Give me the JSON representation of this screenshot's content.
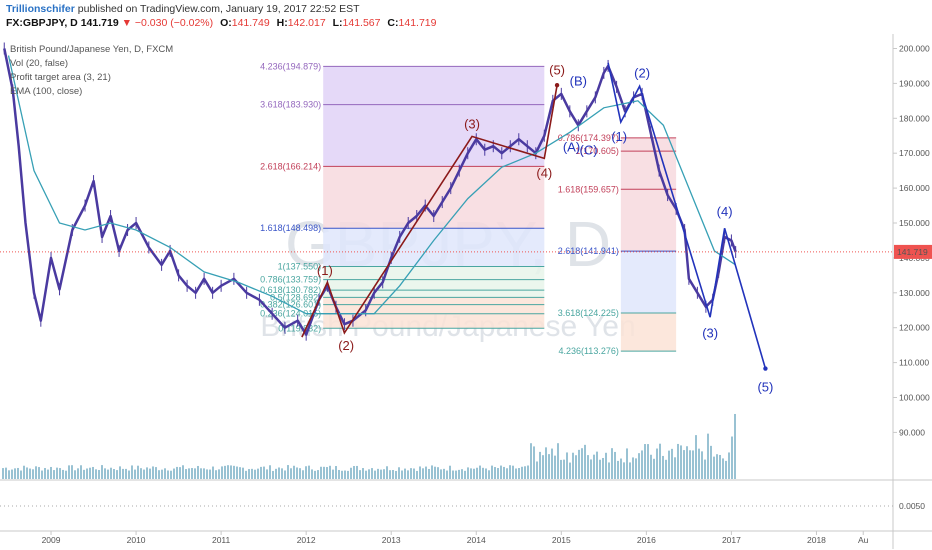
{
  "header": {
    "author": "Trillionschifer",
    "published": "published on TradingView.com, January 19, 2017 22:52 EST",
    "symbol": "FX:GBPJPY, D",
    "last": "141.719",
    "change": "▼ −0.030 (−0.02%)",
    "o_label": "O:",
    "o_value": "141.749",
    "h_label": "H:",
    "h_value": "142.017",
    "l_label": "L:",
    "l_value": "141.567",
    "c_label": "C:",
    "c_value": "141.719"
  },
  "legend": {
    "line1": "British Pound/Japanese Yen, D, FXCM",
    "line2": "Vol (20, false)",
    "line3": "Profit target area (3, 21)",
    "line4": "EMA (100, close)"
  },
  "watermark": {
    "big": "GBPJPY, D",
    "small": "British Pound/Japanese Yen"
  },
  "colors": {
    "wave_red": "#8b1a1a",
    "wave_blue": "#2233bb",
    "price_line": "#ef5350",
    "price_tag_bg": "#ef5350",
    "candles": "#4a3aa0",
    "ema": "#37a0b5",
    "volume": "#7fb3c8"
  },
  "chart_data": {
    "type": "line",
    "title": "British Pound/Japanese Yen, D, FXCM",
    "xlabel": "",
    "ylabel": "",
    "y_ticks": [
      "200.000",
      "190.000",
      "180.000",
      "170.000",
      "160.000",
      "150.000",
      "140.000",
      "130.000",
      "120.000",
      "110.000",
      "100.000",
      "90.000"
    ],
    "indicator_tick": "0.0050",
    "last_price_tag": "141.719",
    "x_ticks": [
      "2009",
      "2010",
      "2011",
      "2012",
      "2013",
      "2014",
      "2015",
      "2016",
      "2017",
      "2018",
      "Au"
    ],
    "ylim": [
      78,
      204
    ],
    "xlim": [
      2008.4,
      2018.9
    ],
    "last_price": 141.719,
    "series": [
      {
        "name": "",
        "values": [
          [
            2008.45,
            200
          ],
          [
            2008.55,
            188
          ],
          [
            2008.62,
            172
          ],
          [
            2008.7,
            150
          ],
          [
            2008.8,
            130
          ],
          [
            2008.88,
            122
          ],
          [
            2009.0,
            140
          ],
          [
            2009.1,
            131
          ],
          [
            2009.25,
            148
          ],
          [
            2009.4,
            155
          ],
          [
            2009.5,
            162
          ],
          [
            2009.6,
            146
          ],
          [
            2009.7,
            152
          ],
          [
            2009.8,
            142
          ],
          [
            2009.9,
            148
          ],
          [
            2010.0,
            150
          ],
          [
            2010.15,
            143
          ],
          [
            2010.3,
            138
          ],
          [
            2010.4,
            142
          ],
          [
            2010.5,
            135
          ],
          [
            2010.6,
            132
          ],
          [
            2010.7,
            130
          ],
          [
            2010.8,
            134
          ],
          [
            2010.9,
            130
          ],
          [
            2011.0,
            132
          ],
          [
            2011.15,
            134
          ],
          [
            2011.3,
            130
          ],
          [
            2011.45,
            128
          ],
          [
            2011.6,
            124
          ],
          [
            2011.75,
            120
          ],
          [
            2011.9,
            122
          ],
          [
            2012.0,
            118
          ],
          [
            2012.15,
            128
          ],
          [
            2012.25,
            132
          ],
          [
            2012.35,
            126
          ],
          [
            2012.45,
            121
          ],
          [
            2012.55,
            122
          ],
          [
            2012.7,
            125
          ],
          [
            2012.8,
            130
          ],
          [
            2012.9,
            133
          ],
          [
            2013.0,
            140
          ],
          [
            2013.1,
            146
          ],
          [
            2013.2,
            150
          ],
          [
            2013.3,
            152
          ],
          [
            2013.4,
            155
          ],
          [
            2013.5,
            152
          ],
          [
            2013.6,
            156
          ],
          [
            2013.7,
            160
          ],
          [
            2013.8,
            165
          ],
          [
            2013.9,
            170
          ],
          [
            2014.0,
            174
          ],
          [
            2014.1,
            171
          ],
          [
            2014.2,
            172
          ],
          [
            2014.3,
            170
          ],
          [
            2014.4,
            172
          ],
          [
            2014.5,
            174
          ],
          [
            2014.6,
            172
          ],
          [
            2014.7,
            170
          ],
          [
            2014.8,
            175
          ],
          [
            2014.9,
            185
          ],
          [
            2015.0,
            187
          ],
          [
            2015.1,
            182
          ],
          [
            2015.2,
            178
          ],
          [
            2015.3,
            182
          ],
          [
            2015.4,
            186
          ],
          [
            2015.5,
            193
          ],
          [
            2015.55,
            195
          ],
          [
            2015.65,
            189
          ],
          [
            2015.75,
            182
          ],
          [
            2015.85,
            186
          ],
          [
            2015.95,
            187
          ],
          [
            2016.05,
            176
          ],
          [
            2016.15,
            165
          ],
          [
            2016.25,
            158
          ],
          [
            2016.35,
            154
          ],
          [
            2016.45,
            148
          ],
          [
            2016.5,
            134
          ],
          [
            2016.6,
            130
          ],
          [
            2016.7,
            126
          ],
          [
            2016.78,
            128
          ],
          [
            2016.85,
            136
          ],
          [
            2016.92,
            146
          ],
          [
            2017.0,
            145
          ],
          [
            2017.05,
            141.7
          ]
        ]
      },
      {
        "name": "",
        "values": [
          [
            2008.5,
            198
          ],
          [
            2008.8,
            165
          ],
          [
            2009.1,
            150
          ],
          [
            2009.4,
            148
          ],
          [
            2009.7,
            150
          ],
          [
            2010.0,
            148
          ],
          [
            2010.4,
            143
          ],
          [
            2010.8,
            136
          ],
          [
            2011.2,
            133
          ],
          [
            2011.6,
            129
          ],
          [
            2012.0,
            124
          ],
          [
            2012.4,
            124
          ],
          [
            2012.8,
            124
          ],
          [
            2013.1,
            132
          ],
          [
            2013.5,
            145
          ],
          [
            2013.9,
            157
          ],
          [
            2014.3,
            166
          ],
          [
            2014.7,
            170
          ],
          [
            2015.1,
            176
          ],
          [
            2015.5,
            183
          ],
          [
            2015.9,
            185
          ],
          [
            2016.2,
            178
          ],
          [
            2016.5,
            160
          ],
          [
            2016.8,
            142
          ],
          [
            2017.05,
            138
          ]
        ]
      }
    ],
    "waves": [
      {
        "name": "",
        "points": [
          [
            2011.95,
            117.3
          ],
          [
            2012.25,
            133.0
          ],
          [
            2012.45,
            118.5
          ],
          [
            2013.95,
            174.8
          ],
          [
            2014.8,
            168.5
          ],
          [
            2014.95,
            189.5
          ]
        ]
      },
      {
        "name": "",
        "points": [
          [
            2015.55,
            195.9
          ],
          [
            2015.7,
            178.9
          ],
          [
            2015.92,
            189.2
          ],
          [
            2016.75,
            123.0
          ],
          [
            2016.92,
            148.5
          ],
          [
            2017.4,
            108.3
          ]
        ]
      }
    ],
    "wave_labels": [
      {
        "text": "(1)",
        "x": 2012.22,
        "y": 136.2,
        "color": "red"
      },
      {
        "text": "(2)",
        "x": 2012.47,
        "y": 114.8,
        "color": "red"
      },
      {
        "text": "(3)",
        "x": 2013.95,
        "y": 178.2,
        "color": "red"
      },
      {
        "text": "(4)",
        "x": 2014.8,
        "y": 164.2,
        "color": "red"
      },
      {
        "text": "(5)",
        "x": 2014.95,
        "y": 193.7,
        "color": "red"
      },
      {
        "text": "(B)",
        "x": 2015.2,
        "y": 190.6,
        "color": "blue"
      },
      {
        "text": "(A)",
        "x": 2015.12,
        "y": 171.6,
        "color": "blue"
      },
      {
        "text": "(C)",
        "x": 2015.32,
        "y": 170.8,
        "color": "blue"
      },
      {
        "text": "(1)",
        "x": 2015.68,
        "y": 174.6,
        "color": "blue"
      },
      {
        "text": "(2)",
        "x": 2015.95,
        "y": 192.8,
        "color": "blue"
      },
      {
        "text": "(3)",
        "x": 2016.75,
        "y": 118.4,
        "color": "blue"
      },
      {
        "text": "(4)",
        "x": 2016.92,
        "y": 153.2,
        "color": "blue"
      },
      {
        "text": "(5)",
        "x": 2017.4,
        "y": 102.9,
        "color": "blue"
      }
    ],
    "fib_left": {
      "x_start": 2012.2,
      "x_end": 2014.8,
      "levels": [
        {
          "label": "4.236(194.879)",
          "value": 194.879
        },
        {
          "label": "3.618(183.930)",
          "value": 183.93
        },
        {
          "label": "2.618(166.214)",
          "value": 166.214
        },
        {
          "label": "1.618(148.498)",
          "value": 148.498
        },
        {
          "label": "1(137.550)",
          "value": 137.55
        },
        {
          "label": "0.786(133.759)",
          "value": 133.759
        },
        {
          "label": "0.618(130.782)",
          "value": 130.782
        },
        {
          "label": "0.5(128.692)",
          "value": 128.692
        },
        {
          "label": "0.382(126.601)",
          "value": 126.601
        },
        {
          "label": "0.236(124.015)",
          "value": 124.015
        },
        {
          "label": "0(119.832)",
          "value": 119.832
        }
      ]
    },
    "fib_right": {
      "x_start": 2015.7,
      "x_end": 2016.35,
      "levels": [
        {
          "label": "4.236(113.276)",
          "value": 113.276
        },
        {
          "label": "3.618(124.225)",
          "value": 124.225
        },
        {
          "label": "2.618(141.941)",
          "value": 141.941
        },
        {
          "label": "1.618(159.657)",
          "value": 159.657
        },
        {
          "label": "1(170.605)",
          "value": 170.605
        },
        {
          "label": "0.786(174.397)",
          "value": 174.397
        }
      ]
    },
    "grid": false
  }
}
